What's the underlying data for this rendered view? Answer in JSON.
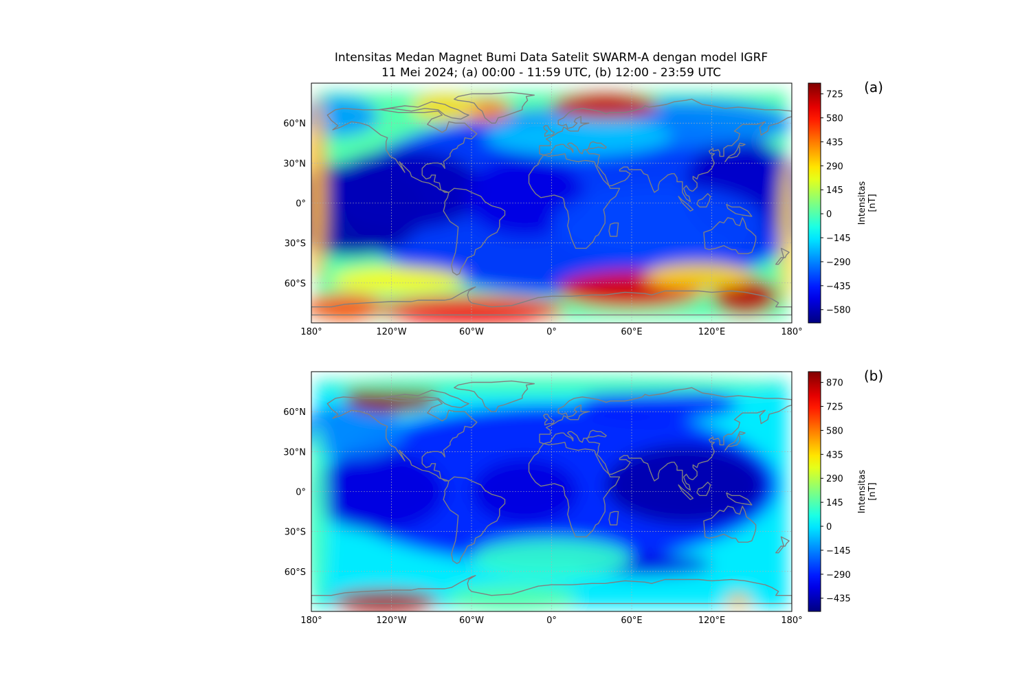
{
  "figure": {
    "title_line1": "Intensitas Medan Magnet Bumi Data Satelit SWARM-A dengan model IGRF",
    "title_line2": "11 Mei 2024; (a) 00:00 - 11:59 UTC, (b) 12:00 - 23:59 UTC"
  },
  "colors": {
    "land_outline": "#808080",
    "colormap": "jet",
    "grid": "#b0b0b0"
  },
  "chart_data": [
    {
      "type": "heatmap",
      "panel_label": "(a)",
      "projection": "PlateCarree",
      "xlim": [
        -180,
        180
      ],
      "ylim": [
        -90,
        90
      ],
      "x_ticks": [
        -180,
        -120,
        -60,
        0,
        60,
        120,
        180
      ],
      "x_tick_labels": [
        "180°",
        "120°W",
        "60°W",
        "0°",
        "60°E",
        "120°E",
        "180°"
      ],
      "y_ticks": [
        60,
        30,
        0,
        -30,
        -60
      ],
      "y_tick_labels": [
        "60°N",
        "30°N",
        "0°",
        "30°S",
        "60°S"
      ],
      "grid": true,
      "colorbar": {
        "label": "Intensitas\n[nT]",
        "label_line1": "Intensitas",
        "label_line2": "[nT]",
        "range": [
          -660,
          790
        ],
        "ticks": [
          725,
          580,
          435,
          290,
          145,
          0,
          -145,
          -290,
          -435,
          -580
        ],
        "tick_labels": [
          "725",
          "580",
          "435",
          "290",
          "145",
          "0",
          "−145",
          "−290",
          "−435",
          "−580"
        ]
      },
      "field_features": [
        {
          "lon": 20,
          "lat": 0,
          "value": -420,
          "extent": [
            180,
            70
          ]
        },
        {
          "lon": -150,
          "lat": -5,
          "value": -600,
          "extent": [
            55,
            35
          ]
        },
        {
          "lon": -110,
          "lat": 10,
          "value": -580,
          "extent": [
            60,
            30
          ]
        },
        {
          "lon": 140,
          "lat": 10,
          "value": -560,
          "extent": [
            40,
            40
          ]
        },
        {
          "lon": -20,
          "lat": 5,
          "value": -520,
          "extent": [
            45,
            30
          ]
        },
        {
          "lon": 80,
          "lat": -15,
          "value": -380,
          "extent": [
            80,
            28
          ]
        },
        {
          "lon": 100,
          "lat": 60,
          "value": -300,
          "extent": [
            80,
            18
          ]
        },
        {
          "lon": -160,
          "lat": 65,
          "value": -260,
          "extent": [
            30,
            15
          ]
        },
        {
          "lon": 20,
          "lat": 50,
          "value": -200,
          "extent": [
            70,
            15
          ]
        },
        {
          "lon": 40,
          "lat": 73,
          "value": 680,
          "extent": [
            40,
            10
          ]
        },
        {
          "lon": -50,
          "lat": 70,
          "value": 420,
          "extent": [
            20,
            9
          ]
        },
        {
          "lon": -80,
          "lat": 72,
          "value": 300,
          "extent": [
            25,
            10
          ]
        },
        {
          "lon": 60,
          "lat": -65,
          "value": 650,
          "extent": [
            55,
            14
          ]
        },
        {
          "lon": 145,
          "lat": -70,
          "value": 700,
          "extent": [
            25,
            14
          ]
        },
        {
          "lon": -60,
          "lat": -80,
          "value": 620,
          "extent": [
            70,
            10
          ]
        },
        {
          "lon": -155,
          "lat": -78,
          "value": 500,
          "extent": [
            30,
            10
          ]
        },
        {
          "lon": 110,
          "lat": -55,
          "value": 300,
          "extent": [
            40,
            10
          ]
        },
        {
          "lon": -115,
          "lat": -58,
          "value": 250,
          "extent": [
            50,
            10
          ]
        },
        {
          "lon": -176,
          "lat": 10,
          "value": 350,
          "extent": [
            7,
            70
          ]
        },
        {
          "lon": 177,
          "lat": -20,
          "value": 300,
          "extent": [
            6,
            55
          ]
        }
      ]
    },
    {
      "type": "heatmap",
      "panel_label": "(b)",
      "projection": "PlateCarree",
      "xlim": [
        -180,
        180
      ],
      "ylim": [
        -90,
        90
      ],
      "x_ticks": [
        -180,
        -120,
        -60,
        0,
        60,
        120,
        180
      ],
      "x_tick_labels": [
        "180°",
        "120°W",
        "60°W",
        "0°",
        "60°E",
        "120°E",
        "180°"
      ],
      "y_ticks": [
        60,
        30,
        0,
        -30,
        -60
      ],
      "y_tick_labels": [
        "60°N",
        "30°N",
        "0°",
        "30°S",
        "60°S"
      ],
      "grid": true,
      "colorbar": {
        "label": "Intensitas\n[nT]",
        "label_line1": "Intensitas",
        "label_line2": "[nT]",
        "range": [
          -515,
          935
        ],
        "ticks": [
          870,
          725,
          580,
          435,
          290,
          145,
          0,
          -145,
          -290,
          -435
        ],
        "tick_labels": [
          "870",
          "725",
          "580",
          "435",
          "290",
          "145",
          "0",
          "−145",
          "−290",
          "−435"
        ]
      },
      "field_features": [
        {
          "lon": 0,
          "lat": 5,
          "value": -300,
          "extent": [
            170,
            60
          ]
        },
        {
          "lon": 100,
          "lat": 5,
          "value": -450,
          "extent": [
            60,
            30
          ]
        },
        {
          "lon": -130,
          "lat": 0,
          "value": -380,
          "extent": [
            50,
            30
          ]
        },
        {
          "lon": -20,
          "lat": 0,
          "value": -380,
          "extent": [
            40,
            25
          ]
        },
        {
          "lon": 70,
          "lat": -55,
          "value": -380,
          "extent": [
            50,
            8
          ]
        },
        {
          "lon": 80,
          "lat": 65,
          "value": -300,
          "extent": [
            60,
            12
          ]
        },
        {
          "lon": -150,
          "lat": 45,
          "value": -150,
          "extent": [
            40,
            20
          ]
        },
        {
          "lon": -120,
          "lat": 70,
          "value": 900,
          "extent": [
            35,
            11
          ]
        },
        {
          "lon": -125,
          "lat": -82,
          "value": 880,
          "extent": [
            40,
            8
          ]
        },
        {
          "lon": -30,
          "lat": -80,
          "value": 150,
          "extent": [
            50,
            10
          ]
        },
        {
          "lon": 140,
          "lat": -82,
          "value": 500,
          "extent": [
            10,
            5
          ]
        },
        {
          "lon": 0,
          "lat": -50,
          "value": 100,
          "extent": [
            60,
            15
          ]
        },
        {
          "lon": 0,
          "lat": 80,
          "value": 130,
          "extent": [
            180,
            7
          ]
        },
        {
          "lon": -176,
          "lat": -20,
          "value": 120,
          "extent": [
            8,
            70
          ]
        }
      ]
    }
  ]
}
